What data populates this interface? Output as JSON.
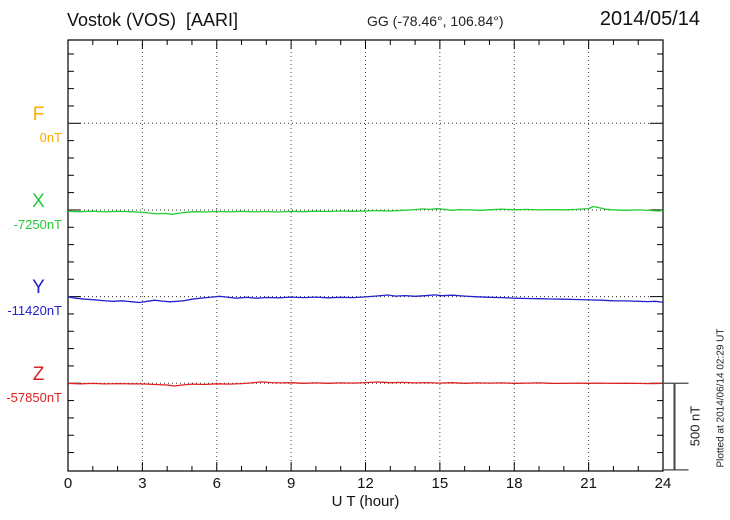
{
  "header": {
    "title": "Vostok (VOS)  [AARI]",
    "coordinates": "GG (-78.46°, 106.84°)",
    "date": "2014/05/14"
  },
  "channels": [
    {
      "letter": "F",
      "baseline_label": "0nT",
      "color": "#FFAA00"
    },
    {
      "letter": "X",
      "baseline_label": "-7250nT",
      "color": "#22CC33"
    },
    {
      "letter": "Y",
      "baseline_label": "-11420nT",
      "color": "#2222CC"
    },
    {
      "letter": "Z",
      "baseline_label": "-57850nT",
      "color": "#DD2222"
    }
  ],
  "x_axis": {
    "label": "U T (hour)",
    "ticks": [
      0,
      3,
      6,
      9,
      12,
      15,
      18,
      21,
      24
    ]
  },
  "scale_bar": {
    "label": "500 nT",
    "nT": 500
  },
  "footer_note": "Plotted at 2014/06/14 02:29 UT",
  "chart_data": {
    "type": "line",
    "title": "Vostok (VOS) [AARI] magnetogram, 2014/05/14",
    "xlabel": "U T (hour)",
    "x_range": [
      0,
      24
    ],
    "x_tick_step_hours": 3,
    "y_scale": "points are offsets in nT from each channel baseline; 100 nT per minor division",
    "scale_bar_nT": 500,
    "grid": "dotted vertical lines every 3 h; dotted horizontal line at each channel baseline",
    "series": [
      {
        "name": "F",
        "baseline_nT": 0,
        "points": []
      },
      {
        "name": "X",
        "baseline_nT": -7250,
        "points": [
          [
            0,
            -8
          ],
          [
            0.5,
            -10
          ],
          [
            1,
            -7
          ],
          [
            1.5,
            -11
          ],
          [
            2,
            -8
          ],
          [
            2.5,
            -10
          ],
          [
            3,
            -14
          ],
          [
            3.3,
            -18
          ],
          [
            3.6,
            -23
          ],
          [
            3.9,
            -20
          ],
          [
            4.2,
            -25
          ],
          [
            4.5,
            -18
          ],
          [
            4.8,
            -13
          ],
          [
            5.2,
            -10
          ],
          [
            5.6,
            -12
          ],
          [
            6,
            -9
          ],
          [
            6.5,
            -11
          ],
          [
            7,
            -8
          ],
          [
            7.5,
            -11
          ],
          [
            8,
            -9
          ],
          [
            8.5,
            -12
          ],
          [
            9,
            -8
          ],
          [
            9.5,
            -10
          ],
          [
            10,
            -7
          ],
          [
            10.5,
            -9
          ],
          [
            11,
            -6
          ],
          [
            11.5,
            -8
          ],
          [
            12,
            -6
          ],
          [
            12.5,
            -4
          ],
          [
            13,
            -6
          ],
          [
            13.5,
            -2
          ],
          [
            14,
            2
          ],
          [
            14.3,
            6
          ],
          [
            14.6,
            3
          ],
          [
            14.9,
            7
          ],
          [
            15.2,
            3
          ],
          [
            15.5,
            -2
          ],
          [
            15.8,
            2
          ],
          [
            16.2,
            0
          ],
          [
            16.6,
            -2
          ],
          [
            17,
            1
          ],
          [
            17.5,
            5
          ],
          [
            18,
            1
          ],
          [
            18.5,
            3
          ],
          [
            19,
            0
          ],
          [
            19.5,
            2
          ],
          [
            20,
            1
          ],
          [
            20.5,
            3
          ],
          [
            21,
            8
          ],
          [
            21.2,
            20
          ],
          [
            21.45,
            12
          ],
          [
            21.7,
            4
          ],
          [
            22,
            1
          ],
          [
            22.5,
            -2
          ],
          [
            23,
            0
          ],
          [
            23.5,
            -3
          ],
          [
            23.8,
            -6
          ],
          [
            24,
            -3
          ]
        ]
      },
      {
        "name": "Y",
        "baseline_nT": -11420,
        "points": [
          [
            0,
            -2
          ],
          [
            0.3,
            -9
          ],
          [
            0.7,
            -15
          ],
          [
            1,
            -18
          ],
          [
            1.4,
            -23
          ],
          [
            1.8,
            -27
          ],
          [
            2.2,
            -24
          ],
          [
            2.6,
            -30
          ],
          [
            2.9,
            -34
          ],
          [
            3.2,
            -27
          ],
          [
            3.5,
            -21
          ],
          [
            3.8,
            -26
          ],
          [
            4.1,
            -30
          ],
          [
            4.4,
            -27
          ],
          [
            4.7,
            -23
          ],
          [
            5,
            -15
          ],
          [
            5.4,
            -8
          ],
          [
            5.8,
            -3
          ],
          [
            6.1,
            2
          ],
          [
            6.4,
            -3
          ],
          [
            6.8,
            -9
          ],
          [
            7.2,
            -4
          ],
          [
            7.6,
            -9
          ],
          [
            8,
            -5
          ],
          [
            8.5,
            -7
          ],
          [
            9,
            -3
          ],
          [
            9.5,
            -6
          ],
          [
            10,
            -3
          ],
          [
            10.5,
            -7
          ],
          [
            11,
            -4
          ],
          [
            11.5,
            -6
          ],
          [
            12,
            -2
          ],
          [
            12.4,
            3
          ],
          [
            12.9,
            9
          ],
          [
            13.2,
            3
          ],
          [
            13.6,
            6
          ],
          [
            14,
            2
          ],
          [
            14.4,
            5
          ],
          [
            14.8,
            10
          ],
          [
            15.1,
            5
          ],
          [
            15.5,
            8
          ],
          [
            16,
            3
          ],
          [
            16.5,
            -1
          ],
          [
            17,
            -4
          ],
          [
            17.5,
            -6
          ],
          [
            18,
            -9
          ],
          [
            18.5,
            -11
          ],
          [
            19,
            -12
          ],
          [
            19.5,
            -14
          ],
          [
            20,
            -15
          ],
          [
            20.5,
            -17
          ],
          [
            21,
            -19
          ],
          [
            21.5,
            -21
          ],
          [
            22,
            -24
          ],
          [
            22.5,
            -25
          ],
          [
            23,
            -27
          ],
          [
            23.4,
            -29
          ],
          [
            23.7,
            -27
          ],
          [
            23.9,
            -31
          ],
          [
            24,
            -33
          ]
        ]
      },
      {
        "name": "Z",
        "baseline_nT": -57850,
        "points": [
          [
            0,
            -1
          ],
          [
            0.5,
            -3
          ],
          [
            1,
            -1
          ],
          [
            1.5,
            -4
          ],
          [
            2,
            -2
          ],
          [
            2.5,
            -3
          ],
          [
            3,
            -4
          ],
          [
            3.5,
            -7
          ],
          [
            4,
            -10
          ],
          [
            4.3,
            -16
          ],
          [
            4.6,
            -10
          ],
          [
            5,
            -5
          ],
          [
            5.5,
            -7
          ],
          [
            6,
            -3
          ],
          [
            6.5,
            -5
          ],
          [
            7,
            -2
          ],
          [
            7.4,
            2
          ],
          [
            7.8,
            8
          ],
          [
            8.2,
            4
          ],
          [
            8.6,
            2
          ],
          [
            9,
            3
          ],
          [
            9.5,
            0
          ],
          [
            10,
            2
          ],
          [
            10.5,
            0
          ],
          [
            11,
            2
          ],
          [
            11.5,
            1
          ],
          [
            12,
            4
          ],
          [
            12.5,
            7
          ],
          [
            13,
            3
          ],
          [
            13.5,
            5
          ],
          [
            14,
            2
          ],
          [
            14.5,
            4
          ],
          [
            15,
            1
          ],
          [
            15.5,
            3
          ],
          [
            16,
            0
          ],
          [
            16.5,
            2
          ],
          [
            17,
            1
          ],
          [
            17.5,
            2
          ],
          [
            18,
            0
          ],
          [
            18.5,
            1
          ],
          [
            19,
            2
          ],
          [
            19.5,
            0
          ],
          [
            20,
            -1
          ],
          [
            20.5,
            1
          ],
          [
            21,
            0
          ],
          [
            21.5,
            1
          ],
          [
            22,
            -1
          ],
          [
            22.5,
            0
          ],
          [
            23,
            -1
          ],
          [
            23.5,
            -2
          ],
          [
            24,
            -1
          ]
        ]
      }
    ]
  }
}
